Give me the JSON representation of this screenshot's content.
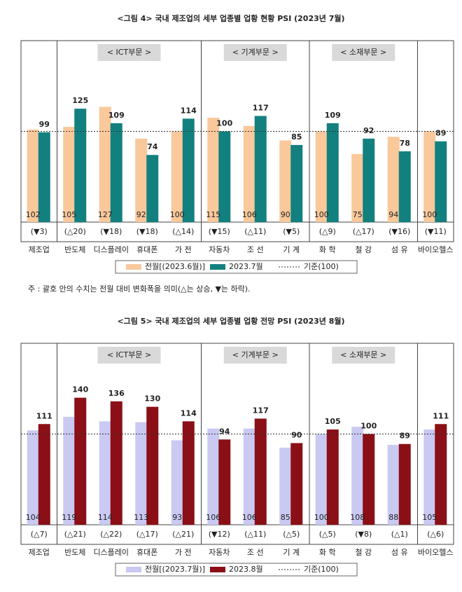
{
  "chart_data": [
    {
      "type": "bar",
      "title": "<그림 4> 국내 제조업의 세부 업종별 업황 현황 PSI (2023년 7월)",
      "categories": [
        "제조업",
        "반도체",
        "디스플레이",
        "휴대폰",
        "가 전",
        "자동차",
        "조 선",
        "기 계",
        "화 학",
        "철 강",
        "섬 유",
        "바이오헬스"
      ],
      "groups": [
        {
          "label": "< ICT부문 >",
          "first": 1,
          "last": 4
        },
        {
          "label": "< 기계부문 >",
          "first": 5,
          "last": 7
        },
        {
          "label": "< 소재부문 >",
          "first": 8,
          "last": 10
        }
      ],
      "series": [
        {
          "name": "전월[(2023.6월)]",
          "color": "#f9c89b",
          "values": [
            102,
            105,
            127,
            92,
            100,
            115,
            106,
            90,
            100,
            75,
            94,
            100
          ]
        },
        {
          "name": "2023.7월",
          "color": "#138080",
          "values": [
            99,
            125,
            109,
            74,
            114,
            100,
            117,
            85,
            109,
            92,
            78,
            89
          ]
        }
      ],
      "changes": [
        "(▼3)",
        "(△20)",
        "(▼18)",
        "(▼18)",
        "(△14)",
        "(▼15)",
        "(△11)",
        "(▼5)",
        "(△9)",
        "(△17)",
        "(▼16)",
        "(▼11)"
      ],
      "reference": 100,
      "reference_label": "기준(100)",
      "ylim": [
        0,
        200
      ]
    },
    {
      "type": "bar",
      "title": "<그림 5> 국내 제조업의 세부 업종별 업황 전망 PSI (2023년 8월)",
      "categories": [
        "제조업",
        "반도체",
        "디스플레이",
        "휴대폰",
        "가 전",
        "자동차",
        "조 선",
        "기 계",
        "화 학",
        "철 강",
        "섬 유",
        "바이오헬스"
      ],
      "groups": [
        {
          "label": "< ICT부문 >",
          "first": 1,
          "last": 4
        },
        {
          "label": "< 기계부문 >",
          "first": 5,
          "last": 7
        },
        {
          "label": "< 소재부문 >",
          "first": 8,
          "last": 10
        }
      ],
      "series": [
        {
          "name": "전월[(2023.7월)]",
          "color": "#c9c9f2",
          "values": [
            104,
            119,
            114,
            113,
            93,
            106,
            106,
            85,
            100,
            108,
            88,
            105
          ]
        },
        {
          "name": "2023.8월",
          "color": "#8b0f16",
          "values": [
            111,
            140,
            136,
            130,
            114,
            94,
            117,
            90,
            105,
            100,
            89,
            111
          ]
        }
      ],
      "changes": [
        "(△7)",
        "(△21)",
        "(△22)",
        "(△17)",
        "(△21)",
        "(▼12)",
        "(△11)",
        "(△5)",
        "(△5)",
        "(▼8)",
        "(△1)",
        "(△6)"
      ],
      "reference": 100,
      "reference_label": "기준(100)",
      "ylim": [
        0,
        200
      ]
    }
  ],
  "note": "주 : 괄호 안의 수치는 전월 대비 변화폭을 의미(△는 상승, ▼는 하락)."
}
